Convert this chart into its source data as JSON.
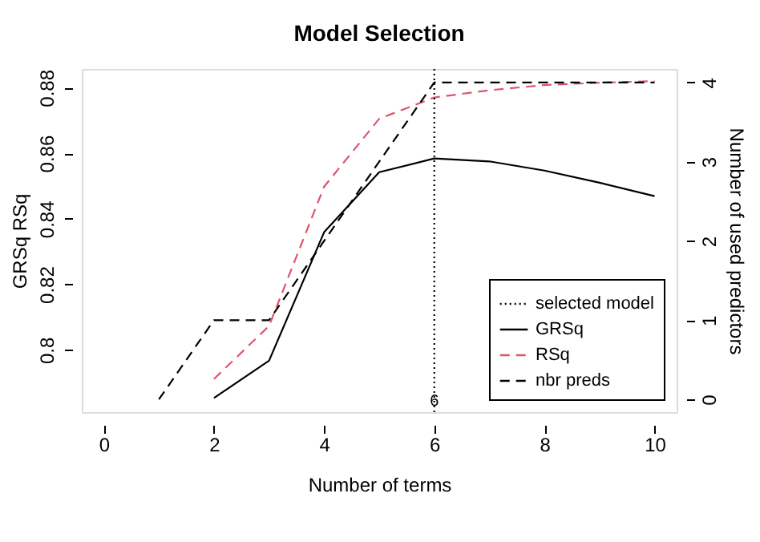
{
  "chart_data": {
    "type": "line",
    "title": "Model Selection",
    "xlabel": "Number of terms",
    "ylabel": "GRSq  RSq",
    "y2label": "Number of used predictors",
    "xlim": [
      -0.4,
      10.4
    ],
    "xticks": [
      0,
      2,
      4,
      6,
      8,
      10
    ],
    "ylim": [
      0.781,
      0.8857
    ],
    "yticks": [
      0.8,
      0.82,
      0.84,
      0.86,
      0.88
    ],
    "y2lim": [
      -0.16,
      4.17
    ],
    "y2ticks": [
      0,
      1,
      2,
      3,
      4
    ],
    "series": [
      {
        "name": "GRSq",
        "color": "#000000",
        "line_style": "solid",
        "x": [
          2,
          3,
          4,
          5,
          6,
          7,
          8,
          9,
          10
        ],
        "values": [
          0.7853,
          0.7967,
          0.8359,
          0.8542,
          0.8584,
          0.8575,
          0.8547,
          0.851,
          0.8469
        ]
      },
      {
        "name": "RSq",
        "color": "#df536b",
        "line_style": "dashed",
        "x": [
          2,
          3,
          4,
          5,
          6,
          7,
          8,
          9,
          10
        ],
        "values": [
          0.7911,
          0.8073,
          0.8498,
          0.8705,
          0.877,
          0.8792,
          0.8808,
          0.8815,
          0.882
        ]
      },
      {
        "name": "nbr preds",
        "color": "#000000",
        "line_style": "dashed",
        "axis": "y2",
        "x": [
          1,
          2,
          3,
          4,
          5,
          6,
          7,
          8,
          9,
          10
        ],
        "values": [
          0,
          1,
          1,
          2,
          3,
          4,
          4,
          4,
          4,
          4
        ]
      }
    ],
    "ref_lines": [
      {
        "axis": "x",
        "value": 6,
        "label": "6",
        "color": "#000000",
        "line_style": "dotted"
      }
    ],
    "annotations": [
      "selected model"
    ],
    "legend": "bottom right",
    "grid": false,
    "marker": "none"
  }
}
